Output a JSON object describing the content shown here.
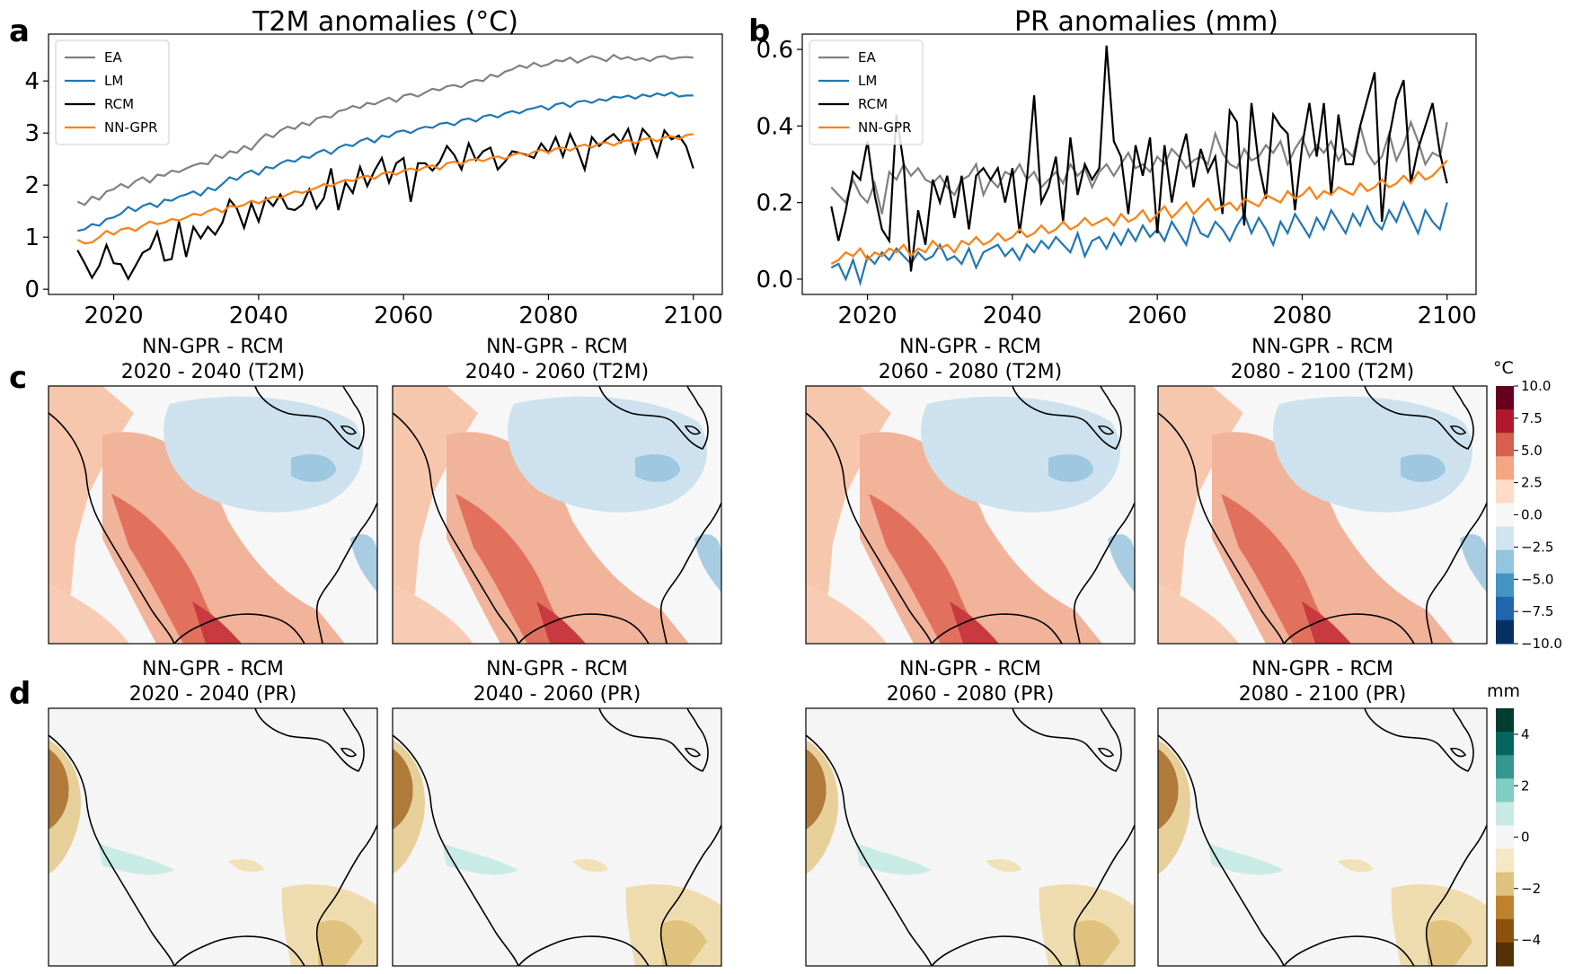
{
  "panel_labels": {
    "a": "a",
    "b": "b",
    "c": "c",
    "d": "d"
  },
  "chart_data": [
    {
      "type": "line",
      "title": "T2M anomalies (°C)",
      "xlabel": "",
      "ylabel": "",
      "xlim": [
        2011,
        2104
      ],
      "ylim": [
        -0.1,
        4.9
      ],
      "xticks": [
        2020,
        2040,
        2060,
        2080,
        2100
      ],
      "yticks": [
        0,
        1,
        2,
        3,
        4
      ],
      "legend_position": "upper-left",
      "x_start": 2015,
      "series": [
        {
          "name": "EA",
          "color": "#808080",
          "values": [
            1.68,
            1.62,
            1.78,
            1.72,
            1.88,
            1.92,
            2.02,
            1.95,
            2.08,
            2.15,
            2.05,
            2.2,
            2.18,
            2.28,
            2.25,
            2.32,
            2.38,
            2.42,
            2.4,
            2.58,
            2.52,
            2.65,
            2.62,
            2.75,
            2.68,
            2.85,
            2.98,
            2.92,
            3.05,
            3.12,
            3.08,
            3.2,
            3.15,
            3.28,
            3.32,
            3.3,
            3.42,
            3.45,
            3.52,
            3.48,
            3.58,
            3.55,
            3.62,
            3.68,
            3.6,
            3.72,
            3.75,
            3.7,
            3.78,
            3.85,
            3.82,
            3.9,
            3.92,
            3.88,
            3.98,
            4.02,
            4.0,
            4.12,
            4.08,
            4.18,
            4.22,
            4.3,
            4.25,
            4.35,
            4.28,
            4.32,
            4.4,
            4.38,
            4.45,
            4.35,
            4.42,
            4.48,
            4.44,
            4.38,
            4.5,
            4.42,
            4.46,
            4.4,
            4.44,
            4.38,
            4.46,
            4.48,
            4.42,
            4.45,
            4.46,
            4.45
          ]
        },
        {
          "name": "LM",
          "color": "#1f77b4",
          "values": [
            1.12,
            1.15,
            1.25,
            1.22,
            1.35,
            1.38,
            1.45,
            1.58,
            1.5,
            1.6,
            1.65,
            1.58,
            1.72,
            1.7,
            1.78,
            1.82,
            1.88,
            1.8,
            1.95,
            1.9,
            2.02,
            2.15,
            2.1,
            2.22,
            2.28,
            2.2,
            2.35,
            2.32,
            2.42,
            2.48,
            2.45,
            2.55,
            2.52,
            2.62,
            2.68,
            2.6,
            2.72,
            2.78,
            2.75,
            2.85,
            2.9,
            2.82,
            2.95,
            2.92,
            3.02,
            3.05,
            3.0,
            3.08,
            3.12,
            3.1,
            3.18,
            3.2,
            3.15,
            3.25,
            3.28,
            3.22,
            3.32,
            3.35,
            3.3,
            3.38,
            3.42,
            3.38,
            3.45,
            3.48,
            3.52,
            3.45,
            3.55,
            3.58,
            3.5,
            3.6,
            3.62,
            3.58,
            3.65,
            3.62,
            3.7,
            3.68,
            3.72,
            3.66,
            3.74,
            3.7,
            3.76,
            3.72,
            3.78,
            3.7,
            3.72,
            3.72
          ]
        },
        {
          "name": "RCM",
          "color": "#000000",
          "values": [
            0.75,
            0.5,
            0.22,
            0.45,
            0.85,
            0.5,
            0.48,
            0.2,
            0.45,
            0.7,
            0.78,
            1.1,
            0.55,
            0.58,
            1.3,
            0.62,
            1.2,
            0.98,
            1.2,
            1.05,
            1.28,
            1.72,
            1.55,
            1.18,
            1.65,
            1.3,
            1.75,
            1.6,
            1.82,
            1.55,
            1.52,
            1.62,
            1.92,
            1.55,
            1.75,
            2.32,
            1.52,
            2.05,
            1.85,
            2.35,
            1.98,
            2.28,
            2.52,
            2.05,
            2.42,
            2.52,
            1.68,
            2.42,
            2.42,
            2.28,
            2.45,
            2.75,
            2.58,
            2.3,
            2.8,
            2.48,
            2.65,
            2.72,
            2.3,
            2.45,
            2.65,
            2.62,
            2.58,
            2.52,
            2.8,
            2.62,
            2.92,
            2.55,
            2.98,
            2.68,
            2.3,
            2.92,
            2.75,
            2.88,
            2.98,
            2.82,
            3.08,
            2.62,
            3.08,
            2.92,
            2.55,
            3.05,
            2.88,
            2.95,
            2.75,
            2.32
          ]
        },
        {
          "name": "NN-GPR",
          "color": "#ff7f0e",
          "values": [
            0.95,
            0.88,
            0.9,
            1.0,
            1.12,
            1.05,
            1.15,
            1.18,
            1.12,
            1.22,
            1.3,
            1.25,
            1.28,
            1.35,
            1.32,
            1.38,
            1.45,
            1.42,
            1.5,
            1.55,
            1.48,
            1.6,
            1.58,
            1.62,
            1.7,
            1.65,
            1.72,
            1.78,
            1.75,
            1.82,
            1.88,
            1.85,
            1.9,
            1.95,
            2.02,
            1.98,
            2.05,
            2.1,
            2.08,
            2.15,
            2.18,
            2.12,
            2.22,
            2.25,
            2.2,
            2.28,
            2.32,
            2.28,
            2.35,
            2.38,
            2.3,
            2.42,
            2.45,
            2.4,
            2.48,
            2.5,
            2.46,
            2.52,
            2.55,
            2.5,
            2.58,
            2.62,
            2.56,
            2.64,
            2.68,
            2.62,
            2.7,
            2.72,
            2.66,
            2.74,
            2.78,
            2.72,
            2.8,
            2.82,
            2.76,
            2.84,
            2.86,
            2.8,
            2.88,
            2.9,
            2.84,
            2.92,
            2.94,
            2.88,
            2.96,
            2.98
          ]
        }
      ]
    },
    {
      "type": "line",
      "title": "PR anomalies (mm)",
      "xlabel": "",
      "ylabel": "",
      "xlim": [
        2011,
        2104
      ],
      "ylim": [
        -0.04,
        0.64
      ],
      "xticks": [
        2020,
        2040,
        2060,
        2080,
        2100
      ],
      "yticks": [
        0.0,
        0.2,
        0.4,
        0.6
      ],
      "legend_position": "upper-left",
      "x_start": 2015,
      "series": [
        {
          "name": "EA",
          "color": "#808080",
          "values": [
            0.24,
            0.22,
            0.2,
            0.26,
            0.22,
            0.2,
            0.25,
            0.17,
            0.28,
            0.26,
            0.3,
            0.27,
            0.29,
            0.26,
            0.25,
            0.27,
            0.24,
            0.22,
            0.26,
            0.27,
            0.3,
            0.22,
            0.26,
            0.24,
            0.28,
            0.27,
            0.3,
            0.26,
            0.28,
            0.24,
            0.26,
            0.28,
            0.25,
            0.3,
            0.27,
            0.29,
            0.24,
            0.28,
            0.3,
            0.27,
            0.3,
            0.33,
            0.29,
            0.3,
            0.28,
            0.32,
            0.3,
            0.34,
            0.32,
            0.29,
            0.31,
            0.32,
            0.3,
            0.38,
            0.33,
            0.3,
            0.29,
            0.34,
            0.31,
            0.32,
            0.35,
            0.33,
            0.36,
            0.3,
            0.34,
            0.37,
            0.32,
            0.35,
            0.33,
            0.36,
            0.31,
            0.34,
            0.32,
            0.4,
            0.33,
            0.3,
            0.32,
            0.38,
            0.31,
            0.35,
            0.41,
            0.36,
            0.3,
            0.33,
            0.32,
            0.41
          ]
        },
        {
          "name": "LM",
          "color": "#1f77b4",
          "values": [
            0.03,
            0.04,
            0.0,
            0.05,
            -0.01,
            0.06,
            0.04,
            0.07,
            0.05,
            0.08,
            0.06,
            0.04,
            0.07,
            0.05,
            0.06,
            0.09,
            0.05,
            0.06,
            0.04,
            0.08,
            0.03,
            0.07,
            0.08,
            0.09,
            0.06,
            0.08,
            0.05,
            0.09,
            0.07,
            0.1,
            0.08,
            0.11,
            0.09,
            0.07,
            0.12,
            0.06,
            0.1,
            0.11,
            0.08,
            0.12,
            0.09,
            0.13,
            0.1,
            0.14,
            0.11,
            0.13,
            0.1,
            0.15,
            0.12,
            0.09,
            0.16,
            0.12,
            0.11,
            0.15,
            0.13,
            0.1,
            0.14,
            0.17,
            0.12,
            0.16,
            0.13,
            0.09,
            0.15,
            0.12,
            0.17,
            0.14,
            0.11,
            0.16,
            0.13,
            0.18,
            0.15,
            0.12,
            0.17,
            0.14,
            0.19,
            0.15,
            0.13,
            0.18,
            0.15,
            0.2,
            0.16,
            0.12,
            0.18,
            0.15,
            0.13,
            0.2
          ]
        },
        {
          "name": "RCM",
          "color": "#000000",
          "values": [
            0.19,
            0.1,
            0.18,
            0.28,
            0.26,
            0.36,
            0.22,
            0.13,
            0.1,
            0.43,
            0.3,
            0.02,
            0.18,
            0.09,
            0.26,
            0.2,
            0.27,
            0.16,
            0.27,
            0.13,
            0.27,
            0.29,
            0.26,
            0.29,
            0.2,
            0.29,
            0.12,
            0.26,
            0.48,
            0.2,
            0.24,
            0.32,
            0.15,
            0.37,
            0.22,
            0.3,
            0.26,
            0.29,
            0.61,
            0.36,
            0.32,
            0.17,
            0.35,
            0.27,
            0.37,
            0.12,
            0.35,
            0.2,
            0.31,
            0.38,
            0.24,
            0.34,
            0.28,
            0.32,
            0.17,
            0.44,
            0.41,
            0.14,
            0.46,
            0.3,
            0.21,
            0.43,
            0.4,
            0.38,
            0.18,
            0.35,
            0.46,
            0.32,
            0.46,
            0.22,
            0.43,
            0.3,
            0.3,
            0.4,
            0.47,
            0.54,
            0.15,
            0.37,
            0.47,
            0.52,
            0.25,
            0.34,
            0.4,
            0.46,
            0.33,
            0.25
          ]
        },
        {
          "name": "NN-GPR",
          "color": "#ff7f0e",
          "values": [
            0.04,
            0.05,
            0.07,
            0.06,
            0.08,
            0.05,
            0.07,
            0.06,
            0.08,
            0.07,
            0.09,
            0.06,
            0.08,
            0.07,
            0.1,
            0.08,
            0.09,
            0.07,
            0.1,
            0.09,
            0.11,
            0.09,
            0.1,
            0.12,
            0.1,
            0.11,
            0.13,
            0.11,
            0.12,
            0.14,
            0.12,
            0.13,
            0.15,
            0.13,
            0.14,
            0.16,
            0.14,
            0.15,
            0.16,
            0.14,
            0.17,
            0.15,
            0.16,
            0.18,
            0.15,
            0.17,
            0.19,
            0.16,
            0.18,
            0.2,
            0.17,
            0.19,
            0.21,
            0.18,
            0.19,
            0.2,
            0.18,
            0.21,
            0.2,
            0.19,
            0.22,
            0.21,
            0.2,
            0.23,
            0.21,
            0.22,
            0.24,
            0.21,
            0.23,
            0.22,
            0.24,
            0.23,
            0.22,
            0.25,
            0.23,
            0.24,
            0.26,
            0.24,
            0.25,
            0.27,
            0.25,
            0.28,
            0.26,
            0.27,
            0.29,
            0.31
          ]
        }
      ]
    }
  ],
  "maps": {
    "t2m_titles": [
      {
        "line1": "NN-GPR - RCM",
        "line2": "2020 - 2040 (T2M)"
      },
      {
        "line1": "NN-GPR - RCM",
        "line2": "2040 - 2060 (T2M)"
      },
      {
        "line1": "NN-GPR - RCM",
        "line2": "2060 - 2080 (T2M)"
      },
      {
        "line1": "NN-GPR - RCM",
        "line2": "2080 - 2100 (T2M)"
      }
    ],
    "pr_titles": [
      {
        "line1": "NN-GPR - RCM",
        "line2": "2020 - 2040 (PR)"
      },
      {
        "line1": "NN-GPR - RCM",
        "line2": "2040 - 2060 (PR)"
      },
      {
        "line1": "NN-GPR - RCM",
        "line2": "2060 - 2080 (PR)"
      },
      {
        "line1": "NN-GPR - RCM",
        "line2": "2080 - 2100 (PR)"
      }
    ],
    "t2m_colorbar": {
      "unit": "°C",
      "ticks": [
        "10.0",
        "7.5",
        "5.0",
        "2.5",
        "0.0",
        "−2.5",
        "−5.0",
        "−7.5",
        "−10.0"
      ],
      "colors": [
        "#67001f",
        "#b2182b",
        "#d6604d",
        "#f4a582",
        "#fddbc7",
        "#f7f7f7",
        "#d1e5f0",
        "#92c5de",
        "#4393c3",
        "#2166ac",
        "#053061"
      ]
    },
    "pr_colorbar": {
      "unit": "mm",
      "ticks": [
        "4",
        "2",
        "0",
        "−2",
        "−4"
      ],
      "colors": [
        "#003c30",
        "#01665e",
        "#35978f",
        "#80cdc1",
        "#c7eae5",
        "#f5f5f5",
        "#f6e8c3",
        "#dfc27d",
        "#bf812d",
        "#8c510a",
        "#543005"
      ]
    }
  }
}
